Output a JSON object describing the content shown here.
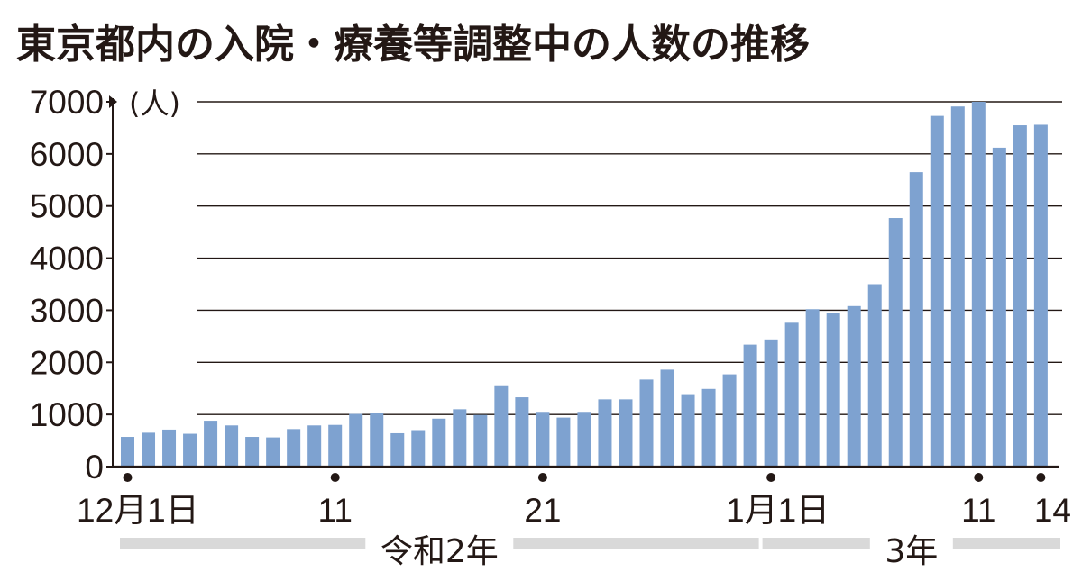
{
  "chart_data": {
    "type": "bar",
    "title": "東京都内の入院・療養等調整中の人数の推移",
    "unit_label": "(人)",
    "ylim": [
      0,
      7000
    ],
    "yticks": [
      0,
      1000,
      2000,
      3000,
      4000,
      5000,
      6000,
      7000
    ],
    "grid": true,
    "bar_color": "#7ea2d0",
    "categories": [
      "12/1",
      "12/2",
      "12/3",
      "12/4",
      "12/5",
      "12/6",
      "12/7",
      "12/8",
      "12/9",
      "12/10",
      "12/11",
      "12/12",
      "12/13",
      "12/14",
      "12/15",
      "12/16",
      "12/17",
      "12/18",
      "12/19",
      "12/20",
      "12/21",
      "12/22",
      "12/23",
      "12/24",
      "12/25",
      "12/26",
      "12/27",
      "12/28",
      "12/29",
      "12/30",
      "12/31",
      "1/1",
      "1/2",
      "1/3",
      "1/4",
      "1/5",
      "1/6",
      "1/7",
      "1/8",
      "1/9",
      "1/10",
      "1/11",
      "1/12",
      "1/13",
      "1/14"
    ],
    "values": [
      570,
      650,
      710,
      630,
      880,
      790,
      570,
      560,
      720,
      790,
      800,
      1010,
      1020,
      640,
      700,
      920,
      1100,
      990,
      1560,
      1330,
      1050,
      940,
      1050,
      1290,
      1290,
      1670,
      1860,
      1390,
      1490,
      1770,
      2340,
      2440,
      2760,
      3020,
      2950,
      3080,
      3500,
      4770,
      5650,
      6730,
      6910,
      7000,
      6120,
      6550,
      6560
    ],
    "x_tick_labels": [
      {
        "index": 0,
        "label": "12月1日"
      },
      {
        "index": 10,
        "label": "11"
      },
      {
        "index": 20,
        "label": "21"
      },
      {
        "index": 31,
        "label": "1月1日"
      },
      {
        "index": 41,
        "label": "11"
      },
      {
        "index": 44,
        "label": "14"
      }
    ],
    "eras": [
      {
        "label": "令和2年",
        "start_index": 0,
        "end_index": 30
      },
      {
        "label": "3年",
        "start_index": 31,
        "end_index": 44
      }
    ]
  }
}
